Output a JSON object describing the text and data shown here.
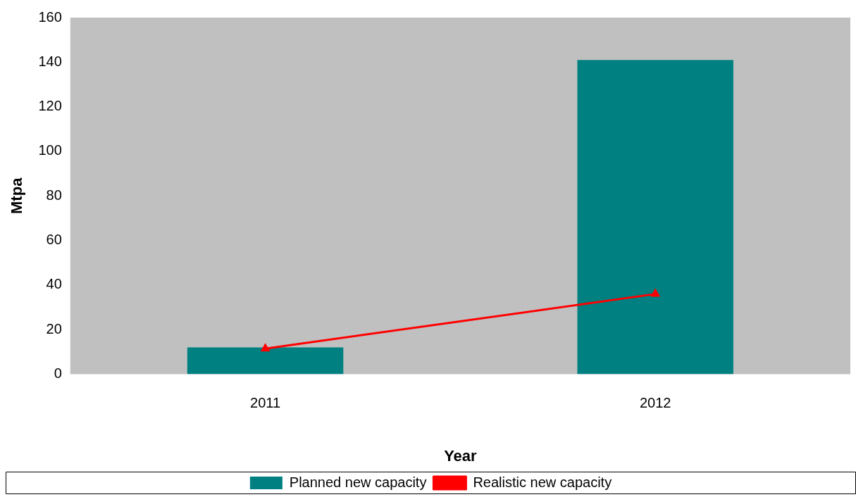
{
  "chart_data": {
    "type": "bar",
    "xlabel": "Year",
    "ylabel": "Mtpa",
    "categories": [
      "2011",
      "2012"
    ],
    "series": [
      {
        "name": "Planned new capacity",
        "color": "#008080",
        "values": [
          12,
          141
        ]
      },
      {
        "name": "Realistic new capacity",
        "type": "line",
        "color": "#ff0000",
        "values": [
          11.5,
          36
        ],
        "marker": "triangle"
      }
    ],
    "ylim": [
      0,
      160
    ],
    "yticks": [
      0,
      20,
      40,
      60,
      80,
      100,
      120,
      140,
      160
    ],
    "grid": false,
    "legend": "bottom"
  }
}
